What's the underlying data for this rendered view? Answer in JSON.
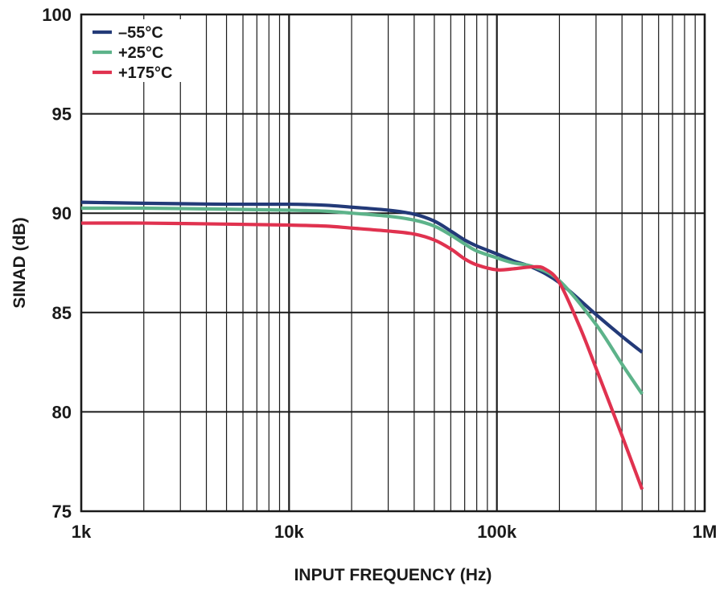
{
  "chart_data": {
    "type": "line",
    "title": "",
    "xlabel": "INPUT FREQUENCY (Hz)",
    "ylabel": "SINAD (dB)",
    "xscale": "log",
    "xlim": [
      1000,
      1000000
    ],
    "ylim": [
      75,
      100
    ],
    "xticks": [
      1000,
      10000,
      100000,
      1000000
    ],
    "xtick_labels": [
      "1k",
      "10k",
      "100k",
      "1M"
    ],
    "yticks": [
      75,
      80,
      85,
      90,
      95,
      100
    ],
    "ytick_labels": [
      "75",
      "80",
      "85",
      "90",
      "95",
      "100"
    ],
    "grid": true,
    "legend_position": "top-left",
    "series": [
      {
        "name": "–55°C",
        "color": "#233a78",
        "x": [
          1000,
          2000,
          5000,
          10000,
          15000,
          20000,
          30000,
          40000,
          50000,
          60000,
          70000,
          80000,
          100000,
          120000,
          150000,
          200000,
          300000,
          400000,
          500000
        ],
        "y": [
          90.55,
          90.5,
          90.45,
          90.45,
          90.4,
          90.3,
          90.15,
          89.95,
          89.6,
          89.1,
          88.65,
          88.35,
          87.95,
          87.6,
          87.25,
          86.5,
          84.9,
          83.8,
          83.0
        ]
      },
      {
        "name": "+25°C",
        "color": "#5db38a",
        "x": [
          1000,
          2000,
          5000,
          10000,
          15000,
          20000,
          30000,
          40000,
          50000,
          60000,
          70000,
          80000,
          100000,
          120000,
          150000,
          200000,
          300000,
          400000,
          500000
        ],
        "y": [
          90.25,
          90.25,
          90.2,
          90.15,
          90.1,
          90.0,
          89.85,
          89.65,
          89.35,
          88.9,
          88.45,
          88.1,
          87.75,
          87.5,
          87.3,
          86.6,
          84.4,
          82.4,
          80.9
        ]
      },
      {
        "name": "+175°C",
        "color": "#e0324f",
        "x": [
          1000,
          2000,
          5000,
          10000,
          15000,
          20000,
          30000,
          40000,
          50000,
          60000,
          70000,
          80000,
          100000,
          120000,
          150000,
          170000,
          200000,
          250000,
          300000,
          400000,
          500000
        ],
        "y": [
          89.5,
          89.5,
          89.45,
          89.4,
          89.35,
          89.25,
          89.1,
          88.95,
          88.65,
          88.2,
          87.7,
          87.4,
          87.15,
          87.2,
          87.3,
          87.2,
          86.5,
          84.3,
          82.2,
          78.8,
          76.1
        ]
      }
    ]
  }
}
